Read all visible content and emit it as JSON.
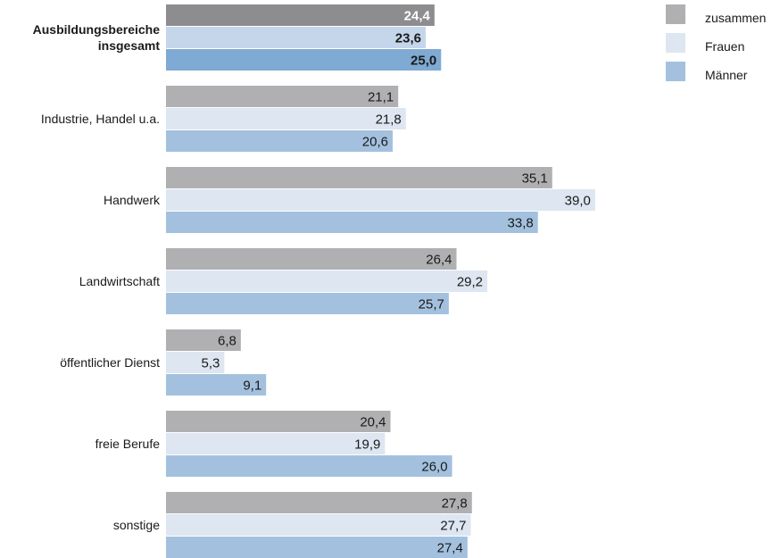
{
  "chart_data": {
    "type": "bar",
    "orientation": "horizontal",
    "categories": [
      "Ausbildungsbereiche insgesamt",
      "Industrie, Handel u.a.",
      "Handwerk",
      "Landwirtschaft",
      "öffentlicher Dienst",
      "freie Berufe",
      "sonstige"
    ],
    "category_lines": [
      [
        "Ausbildungsbereiche",
        "insgesamt"
      ],
      [
        "Industrie, Handel u.a."
      ],
      [
        "Handwerk"
      ],
      [
        "Landwirtschaft"
      ],
      [
        "öffentlicher Dienst"
      ],
      [
        "freie Berufe"
      ],
      [
        "sonstige"
      ]
    ],
    "series": [
      {
        "name": "zusammen",
        "values": [
          24.4,
          21.1,
          35.1,
          26.4,
          6.8,
          20.4,
          27.8
        ]
      },
      {
        "name": "Frauen",
        "values": [
          23.6,
          21.8,
          39.0,
          29.2,
          5.3,
          19.9,
          27.7
        ]
      },
      {
        "name": "Männer",
        "values": [
          25.0,
          20.6,
          33.8,
          25.7,
          9.1,
          26.0,
          27.4
        ]
      }
    ],
    "value_labels": [
      [
        "24,4",
        "23,6",
        "25,0"
      ],
      [
        "21,1",
        "21,8",
        "20,6"
      ],
      [
        "35,1",
        "39,0",
        "33,8"
      ],
      [
        "26,4",
        "29,2",
        "25,7"
      ],
      [
        "6,8",
        "5,3",
        "9,1"
      ],
      [
        "20,4",
        "19,9",
        "26,0"
      ],
      [
        "27,8",
        "27,7",
        "27,4"
      ]
    ],
    "highlight_first_category": true,
    "colors": {
      "zusammen": "#b0b0b3",
      "Frauen": "#dde6f1",
      "Männer": "#a3c1de",
      "highlight_zusammen": "#8d8d90",
      "highlight_Frauen": "#c5d6ea",
      "highlight_Männer": "#7eaad3"
    },
    "xlim": [
      0,
      40
    ],
    "grid": false,
    "legend_position": "top-right",
    "title": "",
    "xlabel": "",
    "ylabel": ""
  }
}
